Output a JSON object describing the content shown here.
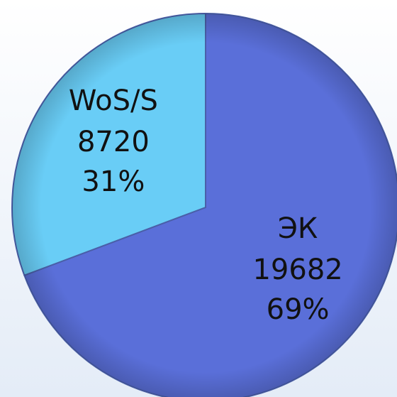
{
  "chart_data": {
    "type": "pie",
    "categories": [
      "ЭК",
      "WoS/S"
    ],
    "values": [
      19682,
      8720
    ],
    "percents": [
      69,
      31
    ],
    "percent_labels": [
      "69%",
      "31%"
    ],
    "colors": [
      "#5a6fd9",
      "#69cdf6"
    ]
  }
}
